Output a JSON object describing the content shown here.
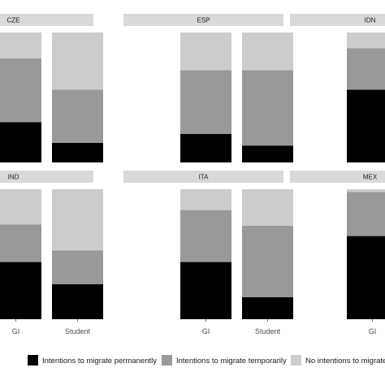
{
  "chart_data": {
    "type": "bar",
    "stacked": true,
    "normalized": true,
    "facet_layout": "3x2 panels",
    "legend_position": "bottom",
    "grid": false,
    "series": [
      {
        "name": "Intentions to migrate permanently",
        "color": "#000000"
      },
      {
        "name": "Intentions to migrate temporarily",
        "color": "#999999"
      },
      {
        "name": "No intentions to migrate",
        "color": "#cccccc"
      }
    ],
    "panels": [
      {
        "title": "CZE",
        "bars": [
          {
            "category": "GI",
            "values": [
              0.31,
              0.49,
              0.2
            ],
            "tick_visible": false
          },
          {
            "category": "Student",
            "values": [
              0.15,
              0.41,
              0.44
            ],
            "tick_visible": false
          }
        ]
      },
      {
        "title": "ESP",
        "bars": [
          {
            "category": "GI",
            "values": [
              0.22,
              0.49,
              0.29
            ],
            "tick_visible": false
          },
          {
            "category": "Student",
            "values": [
              0.13,
              0.58,
              0.29
            ],
            "tick_visible": false
          }
        ]
      },
      {
        "title": "IDN",
        "bars": [
          {
            "category": "GI",
            "values": [
              0.56,
              0.32,
              0.12
            ],
            "tick_visible": false
          }
        ]
      },
      {
        "title": "IND",
        "bars": [
          {
            "category": "GI",
            "values": [
              0.44,
              0.29,
              0.27
            ],
            "tick_visible": true
          },
          {
            "category": "Student",
            "values": [
              0.27,
              0.26,
              0.47
            ],
            "tick_visible": true
          }
        ]
      },
      {
        "title": "ITA",
        "bars": [
          {
            "category": "GI",
            "values": [
              0.44,
              0.4,
              0.16
            ],
            "tick_visible": true
          },
          {
            "category": "Student",
            "values": [
              0.17,
              0.55,
              0.28
            ],
            "tick_visible": true
          }
        ]
      },
      {
        "title": "MEX",
        "bars": [
          {
            "category": "GI",
            "values": [
              0.64,
              0.34,
              0.02
            ],
            "tick_visible": true
          }
        ]
      }
    ],
    "xtick_labels": [
      "GI",
      "Student",
      "GI",
      "Student",
      "GI"
    ]
  }
}
